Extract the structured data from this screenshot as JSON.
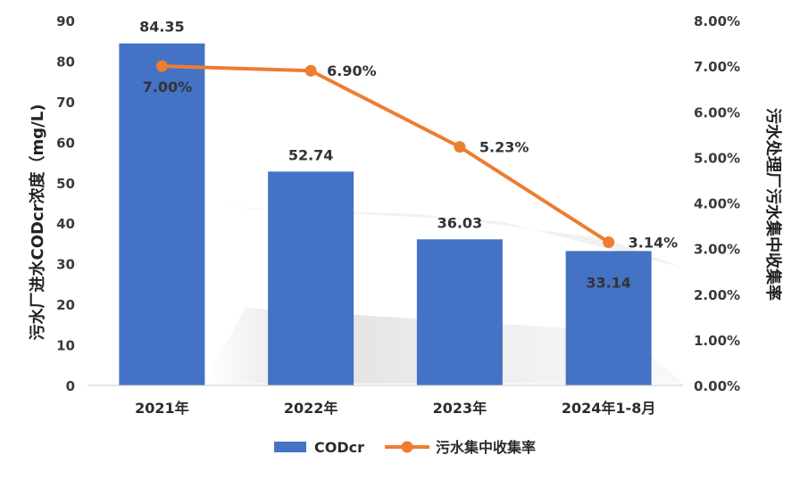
{
  "chart_data": {
    "type": "bar",
    "categories": [
      "2021年",
      "2022年",
      "2023年",
      "2024年1-8月"
    ],
    "series": [
      {
        "name": "CODcr",
        "type": "bar",
        "axis": "left",
        "values": [
          84.35,
          52.74,
          36.03,
          33.14
        ],
        "labels": [
          "84.35",
          "52.74",
          "36.03",
          "33.14"
        ]
      },
      {
        "name": "污水集中收集率",
        "type": "line",
        "axis": "right",
        "values": [
          7.0,
          6.9,
          5.23,
          3.14
        ],
        "labels": [
          "7.00%",
          "6.90%",
          "5.23%",
          "3.14%"
        ]
      }
    ],
    "y_left": {
      "label": "污水厂进水CODcr浓度（mg/L)",
      "ylim": [
        0,
        90
      ],
      "ticks": [
        "0",
        "10",
        "20",
        "30",
        "40",
        "50",
        "60",
        "70",
        "80",
        "90"
      ]
    },
    "y_right": {
      "label": "污水处理厂污水集中收集率",
      "ylim": [
        0,
        8
      ],
      "ticks": [
        "0.00%",
        "1.00%",
        "2.00%",
        "3.00%",
        "4.00%",
        "5.00%",
        "6.00%",
        "7.00%",
        "8.00%"
      ]
    },
    "legend_position": "bottom",
    "grid": false,
    "colors": {
      "bar": "#4472C4",
      "line": "#ED7D31"
    }
  }
}
